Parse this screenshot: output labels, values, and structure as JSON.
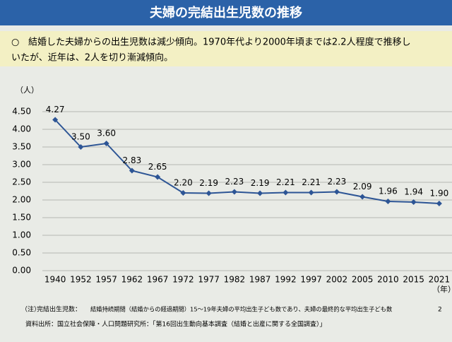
{
  "chart_data": {
    "type": "line",
    "title": "夫婦の完結出生児数の推移",
    "bullet_mark": "○",
    "summary_lines": [
      "結婚した夫婦からの出生児数は減少傾向。1970年代より2000年頃までは2.2人程度で推移し",
      "いたが、近年は、2人を切り漸減傾向。"
    ],
    "y_axis_label": "（人）",
    "x_axis_label": "（年）",
    "categories": [
      "1940",
      "1952",
      "1957",
      "1962",
      "1967",
      "1972",
      "1977",
      "1982",
      "1987",
      "1992",
      "1997",
      "2002",
      "2005",
      "2010",
      "2015",
      "2021"
    ],
    "series": [
      {
        "name": "完結出生児数",
        "color": "#2d5595",
        "values": [
          4.27,
          3.5,
          3.6,
          2.83,
          2.65,
          2.2,
          2.19,
          2.23,
          2.19,
          2.21,
          2.21,
          2.23,
          2.09,
          1.96,
          1.94,
          1.9
        ],
        "value_labels": [
          "4.27",
          "3.50",
          "3.60",
          "2.83",
          "2.65",
          "2.20",
          "2.19",
          "2.23",
          "2.19",
          "2.21",
          "2.21",
          "2.23",
          "2.09",
          "1.96",
          "1.94",
          "1.90"
        ]
      }
    ],
    "ylim": [
      0,
      4.5
    ],
    "yticks": [
      {
        "value": 0,
        "label": "0.00"
      },
      {
        "value": 0.5,
        "label": "0.50"
      },
      {
        "value": 1,
        "label": "1.00"
      },
      {
        "value": 1.5,
        "label": "1.50"
      },
      {
        "value": 2,
        "label": "2.00"
      },
      {
        "value": 2.5,
        "label": "2.50"
      },
      {
        "value": 3,
        "label": "3.00"
      },
      {
        "value": 3.5,
        "label": "3.50"
      },
      {
        "value": 4,
        "label": "4.00"
      },
      {
        "value": 4.5,
        "label": "4.50"
      }
    ],
    "grid": true,
    "note_label": "（注）",
    "note_term": "完結出生児数：",
    "note_text": "結婚持続期間（結婚からの経過期間）15～19年夫婦の平均出生子ども数であり、夫婦の最終的な平均出生子ども数",
    "page_number": "2",
    "source": "資料出所：国立社会保障・人口問題研究所：「第16回出生動向基本調査（結婚と出産に関する全国調査）」"
  }
}
